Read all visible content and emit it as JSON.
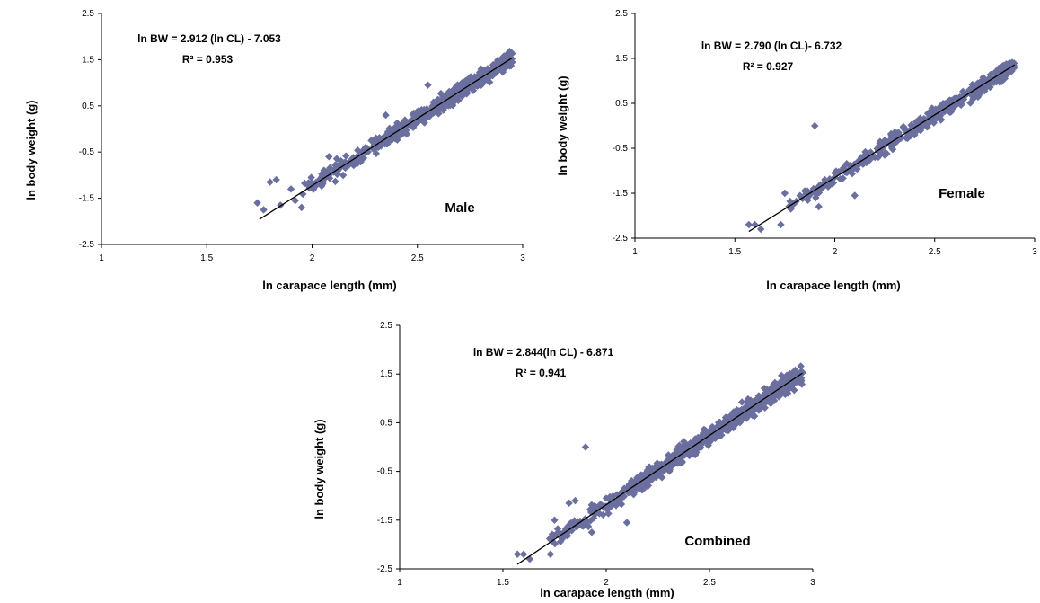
{
  "colors": {
    "marker": "#6b6f9e",
    "line": "#000000",
    "axis": "#000000"
  },
  "chart_data": [
    {
      "type": "scatter",
      "label": "Male",
      "xlabel": "ln carapace length (mm)",
      "ylabel": "ln body weight (g)",
      "xlim": [
        1,
        3
      ],
      "ylim": [
        -2.5,
        2.5
      ],
      "xticks": [
        "1",
        "1.5",
        "2",
        "2.5",
        "3"
      ],
      "yticks": [
        "2.5",
        "1.5",
        "0.5",
        "-0.5",
        "-1.5",
        "-2.5"
      ],
      "equation": "ln BW = 2.912 (ln CL) - 7.053",
      "r2": "R² = 0.953",
      "trendline": {
        "slope": 2.912,
        "intercept": -7.053,
        "x_range": [
          1.75,
          2.95
        ]
      },
      "series": [
        {
          "marker": "diamond",
          "x_range": [
            1.74,
            2.95
          ],
          "outliers": [
            [
              1.74,
              -1.6
            ],
            [
              1.77,
              -1.75
            ],
            [
              1.8,
              -1.15
            ],
            [
              1.83,
              -1.1
            ],
            [
              1.85,
              -1.65
            ],
            [
              1.9,
              -1.3
            ],
            [
              1.92,
              -1.55
            ],
            [
              1.95,
              -1.7
            ],
            [
              2.08,
              -0.6
            ],
            [
              2.35,
              0.3
            ],
            [
              2.55,
              0.95
            ]
          ]
        }
      ],
      "grid": false
    },
    {
      "type": "scatter",
      "label": "Female",
      "xlabel": "ln carapace length (mm)",
      "ylabel": "ln body weight (g)",
      "xlim": [
        1,
        3
      ],
      "ylim": [
        -2.5,
        2.5
      ],
      "xticks": [
        "1",
        "1.5",
        "2",
        "2.5",
        "3"
      ],
      "yticks": [
        "2.5",
        "1.5",
        "0.5",
        "-0.5",
        "-1.5",
        "-2.5"
      ],
      "equation": "ln BW = 2.790 (ln CL)- 6.732",
      "r2": "R² = 0.927",
      "trendline": {
        "slope": 2.79,
        "intercept": -6.732,
        "x_range": [
          1.57,
          2.9
        ]
      },
      "series": [
        {
          "marker": "diamond",
          "x_range": [
            1.57,
            2.9
          ],
          "outliers": [
            [
              1.57,
              -2.2
            ],
            [
              1.6,
              -2.2
            ],
            [
              1.63,
              -2.3
            ],
            [
              1.73,
              -2.2
            ],
            [
              1.75,
              -1.5
            ],
            [
              1.78,
              -1.85
            ],
            [
              1.85,
              -1.45
            ],
            [
              1.9,
              0.0
            ],
            [
              1.92,
              -1.8
            ],
            [
              1.95,
              -1.2
            ],
            [
              2.0,
              -1.05
            ],
            [
              2.1,
              -1.55
            ]
          ]
        }
      ],
      "grid": false
    },
    {
      "type": "scatter",
      "label": "Combined",
      "xlabel": "ln carapace length (mm)",
      "ylabel": "ln body weight (g)",
      "xlim": [
        1,
        3
      ],
      "ylim": [
        -2.5,
        2.5
      ],
      "xticks": [
        "1",
        "1.5",
        "2",
        "2.5",
        "3"
      ],
      "yticks": [
        "2.5",
        "1.5",
        "0.5",
        "-0.5",
        "-1.5",
        "-2.5"
      ],
      "equation": "ln BW = 2.844(ln CL) - 6.871",
      "r2": "R² = 0.941",
      "trendline": {
        "slope": 2.844,
        "intercept": -6.871,
        "x_range": [
          1.57,
          2.95
        ]
      },
      "series": [
        {
          "marker": "diamond",
          "x_range": [
            1.57,
            2.95
          ],
          "outliers": [
            [
              1.57,
              -2.2
            ],
            [
              1.6,
              -2.2
            ],
            [
              1.63,
              -2.3
            ],
            [
              1.73,
              -2.2
            ],
            [
              1.75,
              -1.5
            ],
            [
              1.78,
              -1.85
            ],
            [
              1.82,
              -1.15
            ],
            [
              1.85,
              -1.1
            ],
            [
              1.9,
              0.0
            ],
            [
              1.93,
              -1.75
            ],
            [
              1.95,
              -1.25
            ],
            [
              2.0,
              -1.05
            ],
            [
              2.1,
              -1.55
            ]
          ]
        }
      ],
      "grid": false
    }
  ]
}
